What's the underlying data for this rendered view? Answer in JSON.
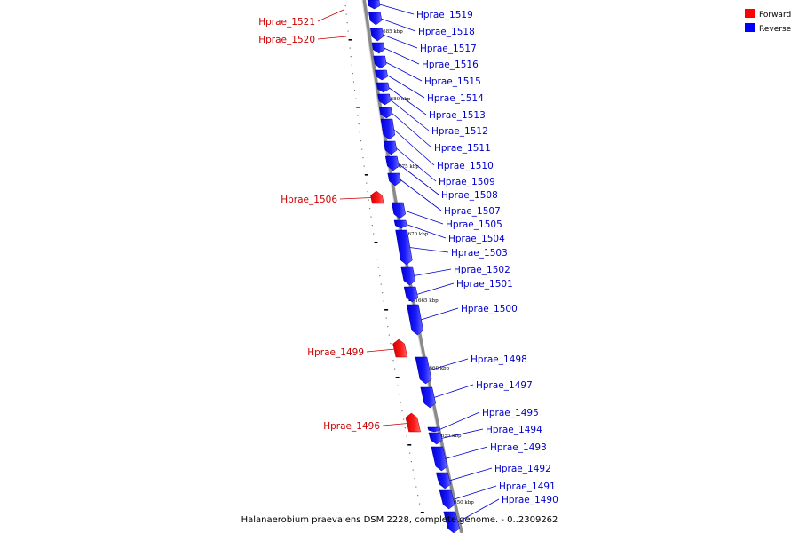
{
  "legend": {
    "items": [
      {
        "label": "Forward",
        "color": "#ff0000"
      },
      {
        "label": "Reverse",
        "color": "#0000ff"
      }
    ]
  },
  "caption": "Halanaerobium praevalens DSM 2228, complete genome. - 0..2309262",
  "tick_labels": [
    "1685 kbp",
    "1680 kbp",
    "1675 kbp",
    "1670 kbp",
    "1665 kbp",
    "1660 kbp",
    "1655 kbp",
    "1650 kbp"
  ],
  "genes": [
    {
      "name": "Hprae_1521",
      "strand": "forward"
    },
    {
      "name": "Hprae_1520",
      "strand": "forward"
    },
    {
      "name": "Hprae_1519",
      "strand": "reverse"
    },
    {
      "name": "Hprae_1518",
      "strand": "reverse"
    },
    {
      "name": "Hprae_1517",
      "strand": "reverse"
    },
    {
      "name": "Hprae_1516",
      "strand": "reverse"
    },
    {
      "name": "Hprae_1515",
      "strand": "reverse"
    },
    {
      "name": "Hprae_1514",
      "strand": "reverse"
    },
    {
      "name": "Hprae_1513",
      "strand": "reverse"
    },
    {
      "name": "Hprae_1512",
      "strand": "reverse"
    },
    {
      "name": "Hprae_1511",
      "strand": "reverse"
    },
    {
      "name": "Hprae_1510",
      "strand": "reverse"
    },
    {
      "name": "Hprae_1509",
      "strand": "reverse"
    },
    {
      "name": "Hprae_1508",
      "strand": "reverse"
    },
    {
      "name": "Hprae_1507",
      "strand": "reverse"
    },
    {
      "name": "Hprae_1506",
      "strand": "forward"
    },
    {
      "name": "Hprae_1505",
      "strand": "reverse"
    },
    {
      "name": "Hprae_1504",
      "strand": "reverse"
    },
    {
      "name": "Hprae_1503",
      "strand": "reverse"
    },
    {
      "name": "Hprae_1502",
      "strand": "reverse"
    },
    {
      "name": "Hprae_1501",
      "strand": "reverse"
    },
    {
      "name": "Hprae_1500",
      "strand": "reverse"
    },
    {
      "name": "Hprae_1499",
      "strand": "forward"
    },
    {
      "name": "Hprae_1498",
      "strand": "reverse"
    },
    {
      "name": "Hprae_1497",
      "strand": "reverse"
    },
    {
      "name": "Hprae_1496",
      "strand": "forward"
    },
    {
      "name": "Hprae_1495",
      "strand": "reverse"
    },
    {
      "name": "Hprae_1494",
      "strand": "reverse"
    },
    {
      "name": "Hprae_1493",
      "strand": "reverse"
    },
    {
      "name": "Hprae_1492",
      "strand": "reverse"
    },
    {
      "name": "Hprae_1491",
      "strand": "reverse"
    },
    {
      "name": "Hprae_1490",
      "strand": "reverse"
    }
  ]
}
